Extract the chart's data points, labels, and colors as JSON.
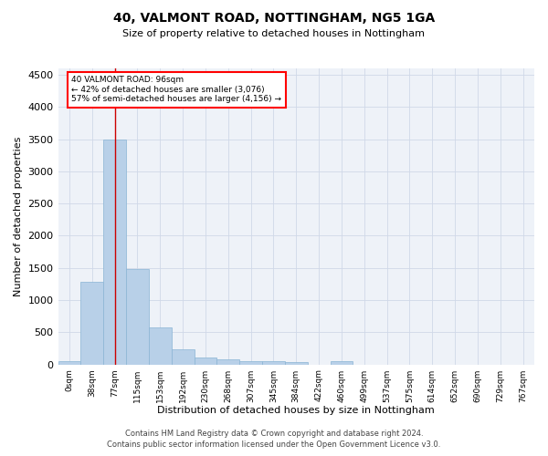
{
  "title": "40, VALMONT ROAD, NOTTINGHAM, NG5 1GA",
  "subtitle": "Size of property relative to detached houses in Nottingham",
  "xlabel": "Distribution of detached houses by size in Nottingham",
  "ylabel": "Number of detached properties",
  "bar_color": "#b8d0e8",
  "bar_edge_color": "#8ab4d4",
  "background_color": "#eef2f8",
  "grid_color": "#d0d8e8",
  "bin_labels": [
    "0sqm",
    "38sqm",
    "77sqm",
    "115sqm",
    "153sqm",
    "192sqm",
    "230sqm",
    "268sqm",
    "307sqm",
    "345sqm",
    "384sqm",
    "422sqm",
    "460sqm",
    "499sqm",
    "537sqm",
    "575sqm",
    "614sqm",
    "652sqm",
    "690sqm",
    "729sqm",
    "767sqm"
  ],
  "bar_values": [
    50,
    1280,
    3500,
    1480,
    575,
    240,
    110,
    80,
    55,
    45,
    40,
    0,
    55,
    0,
    0,
    0,
    0,
    0,
    0,
    0,
    0
  ],
  "ylim": [
    0,
    4600
  ],
  "yticks": [
    0,
    500,
    1000,
    1500,
    2000,
    2500,
    3000,
    3500,
    4000,
    4500
  ],
  "property_label": "40 VALMONT ROAD: 96sqm",
  "pct_smaller": 42,
  "count_smaller": 3076,
  "pct_larger": 57,
  "count_larger": 4156,
  "vline_bin_index": 2,
  "vline_color": "#cc0000",
  "footer_line1": "Contains HM Land Registry data © Crown copyright and database right 2024.",
  "footer_line2": "Contains public sector information licensed under the Open Government Licence v3.0."
}
